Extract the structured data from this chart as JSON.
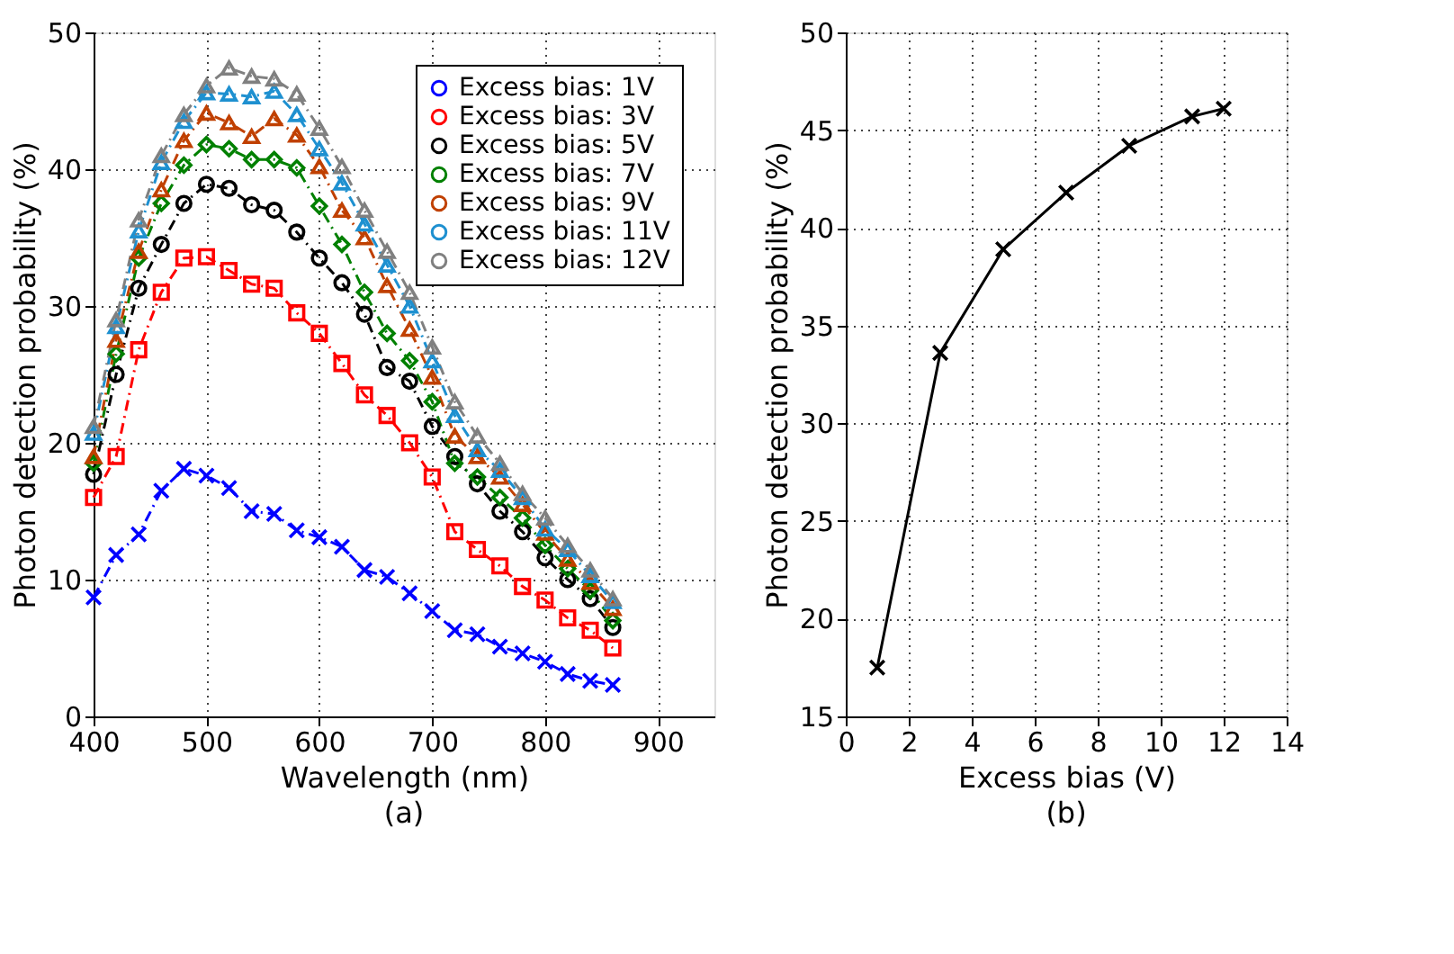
{
  "chart_data": [
    {
      "type": "line",
      "xlabel": "Wavelength (nm)",
      "ylabel": "Photon detection probability (%)",
      "annotations": [
        "(a)"
      ],
      "x": [
        400,
        420,
        440,
        460,
        480,
        500,
        520,
        540,
        560,
        580,
        600,
        620,
        640,
        660,
        680,
        700,
        720,
        740,
        760,
        780,
        800,
        820,
        840,
        860
      ],
      "xlim": [
        400,
        950
      ],
      "xticks": [
        400,
        500,
        600,
        700,
        800,
        900
      ],
      "ylim": [
        0,
        50
      ],
      "yticks": [
        0,
        10,
        20,
        30,
        40,
        50
      ],
      "grid": true,
      "legend": "top right",
      "line_style": "dashed",
      "series": [
        {
          "name": "Excess bias:  1V",
          "color": "#0000ff",
          "marker": "cross",
          "values": [
            8.7,
            11.8,
            13.3,
            16.5,
            18.1,
            17.6,
            16.7,
            15.0,
            14.8,
            13.6,
            13.1,
            12.4,
            10.7,
            10.2,
            9.0,
            7.7,
            6.3,
            6.0,
            5.1,
            4.6,
            4.0,
            3.1,
            2.6,
            2.3
          ]
        },
        {
          "name": "Excess bias:  3V",
          "color": "#ff0000",
          "marker": "square",
          "values": [
            16.0,
            19.0,
            26.8,
            31.0,
            33.5,
            33.6,
            32.6,
            31.6,
            31.3,
            29.5,
            28.0,
            25.8,
            23.5,
            22.0,
            20.0,
            17.5,
            13.5,
            12.2,
            11.0,
            9.5,
            8.5,
            7.2,
            6.3,
            5.0
          ]
        },
        {
          "name": "Excess bias:  5V",
          "color": "#000000",
          "marker": "circle",
          "values": [
            17.7,
            25.0,
            31.3,
            34.5,
            37.5,
            38.9,
            38.6,
            37.4,
            37.0,
            35.4,
            33.5,
            31.7,
            29.4,
            25.5,
            24.5,
            21.2,
            19.0,
            17.0,
            15.0,
            13.5,
            11.6,
            10.0,
            8.6,
            6.5
          ]
        },
        {
          "name": "Excess bias:  7V",
          "color": "#008000",
          "marker": "diamond",
          "values": [
            18.5,
            26.5,
            33.5,
            37.5,
            40.3,
            41.8,
            41.5,
            40.7,
            40.7,
            40.1,
            37.3,
            34.5,
            31.0,
            28.0,
            26.0,
            23.0,
            18.5,
            17.5,
            16.0,
            14.5,
            12.5,
            10.8,
            9.2,
            7.0
          ]
        },
        {
          "name": "Excess bias:  9V",
          "color": "#c04000",
          "marker": "triangle",
          "values": [
            19.0,
            27.5,
            34.0,
            38.5,
            42.1,
            44.1,
            43.4,
            42.4,
            43.7,
            42.5,
            40.2,
            37.0,
            35.0,
            31.5,
            28.3,
            24.8,
            20.5,
            19.0,
            17.5,
            15.5,
            13.4,
            11.5,
            9.8,
            7.9
          ]
        },
        {
          "name": "Excess bias: 11V",
          "color": "#1e90d0",
          "marker": "triangle",
          "values": [
            20.7,
            28.5,
            35.5,
            40.5,
            43.5,
            45.6,
            45.5,
            45.3,
            45.7,
            44.0,
            41.5,
            39.0,
            36.0,
            33.0,
            30.0,
            26.0,
            22.0,
            19.5,
            18.0,
            16.0,
            13.7,
            12.2,
            10.3,
            8.4
          ]
        },
        {
          "name": "Excess bias: 12V",
          "color": "#808080",
          "marker": "triangle",
          "values": [
            21.2,
            29.0,
            36.3,
            41.0,
            44.0,
            46.1,
            47.4,
            46.8,
            46.6,
            45.5,
            43.0,
            40.2,
            37.0,
            34.0,
            31.0,
            27.0,
            23.0,
            20.5,
            18.5,
            16.3,
            14.5,
            12.5,
            10.7,
            8.6
          ]
        }
      ]
    },
    {
      "type": "line",
      "xlabel": "Excess bias (V)",
      "ylabel": "Photon detection probability (%)",
      "annotations": [
        "(b)"
      ],
      "x": [
        1,
        3,
        5,
        7,
        9,
        11,
        12
      ],
      "xlim": [
        0,
        14
      ],
      "xticks": [
        0,
        2,
        4,
        6,
        8,
        10,
        12,
        14
      ],
      "ylim": [
        15,
        50
      ],
      "yticks": [
        15,
        20,
        25,
        30,
        35,
        40,
        45,
        50
      ],
      "grid": true,
      "line_style": "solid",
      "marker": "cross",
      "series": [
        {
          "color": "#000000",
          "values": [
            17.5,
            33.6,
            38.9,
            41.8,
            44.2,
            45.7,
            46.1
          ]
        }
      ]
    }
  ]
}
